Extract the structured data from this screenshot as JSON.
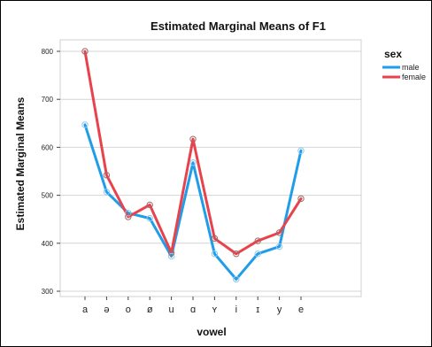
{
  "chart_data": {
    "type": "line",
    "title": "Estimated Marginal Means of F1",
    "xlabel": "vowel",
    "ylabel": "Estimated Marginal Means",
    "categories": [
      "a",
      "ə",
      "o",
      "ø",
      "u",
      "ɑ",
      "ʏ",
      "i",
      "ɪ",
      "y",
      "e"
    ],
    "ylim": [
      300,
      800
    ],
    "yticks": [
      300,
      400,
      500,
      600,
      700,
      800
    ],
    "grid": "horizontal",
    "legend": {
      "title": "sex",
      "placement": "top-right"
    },
    "series": [
      {
        "name": "male",
        "color": "#1f9de8",
        "values": [
          647,
          507,
          463,
          452,
          373,
          568,
          378,
          325,
          378,
          393,
          593
        ]
      },
      {
        "name": "female",
        "color": "#e8434c",
        "values": [
          800,
          542,
          455,
          480,
          380,
          617,
          410,
          378,
          405,
          422,
          493
        ]
      }
    ]
  }
}
